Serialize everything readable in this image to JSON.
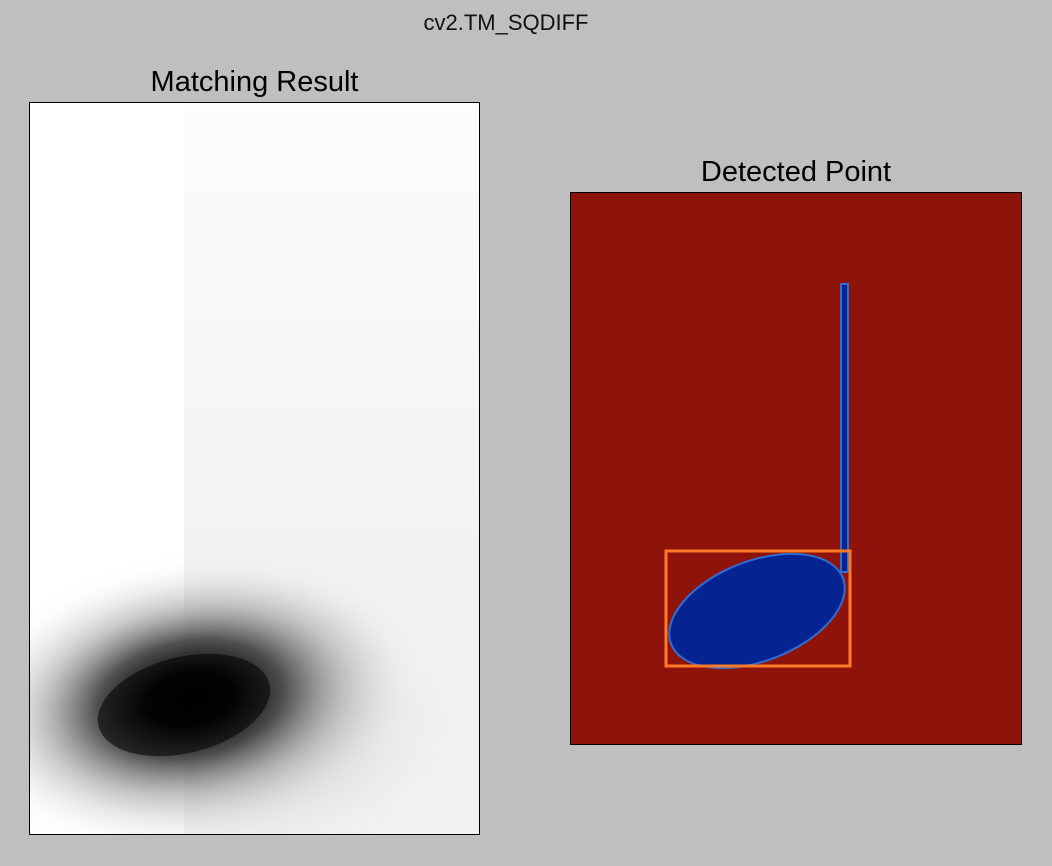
{
  "window": {
    "title": "cv2.TM_SQDIFF"
  },
  "panels": [
    {
      "title": "Matching Result",
      "colormap": "gray"
    },
    {
      "title": "Detected Point",
      "colormap": "jet"
    }
  ],
  "colors": {
    "background": "#bfbfbf",
    "heatmap_min": "#000000",
    "heatmap_max": "#ffffff",
    "detected_background": "#8e130b",
    "note_fill": "#062491",
    "note_edge": "#2f6ed1",
    "detection_box": "#ff7a24"
  }
}
